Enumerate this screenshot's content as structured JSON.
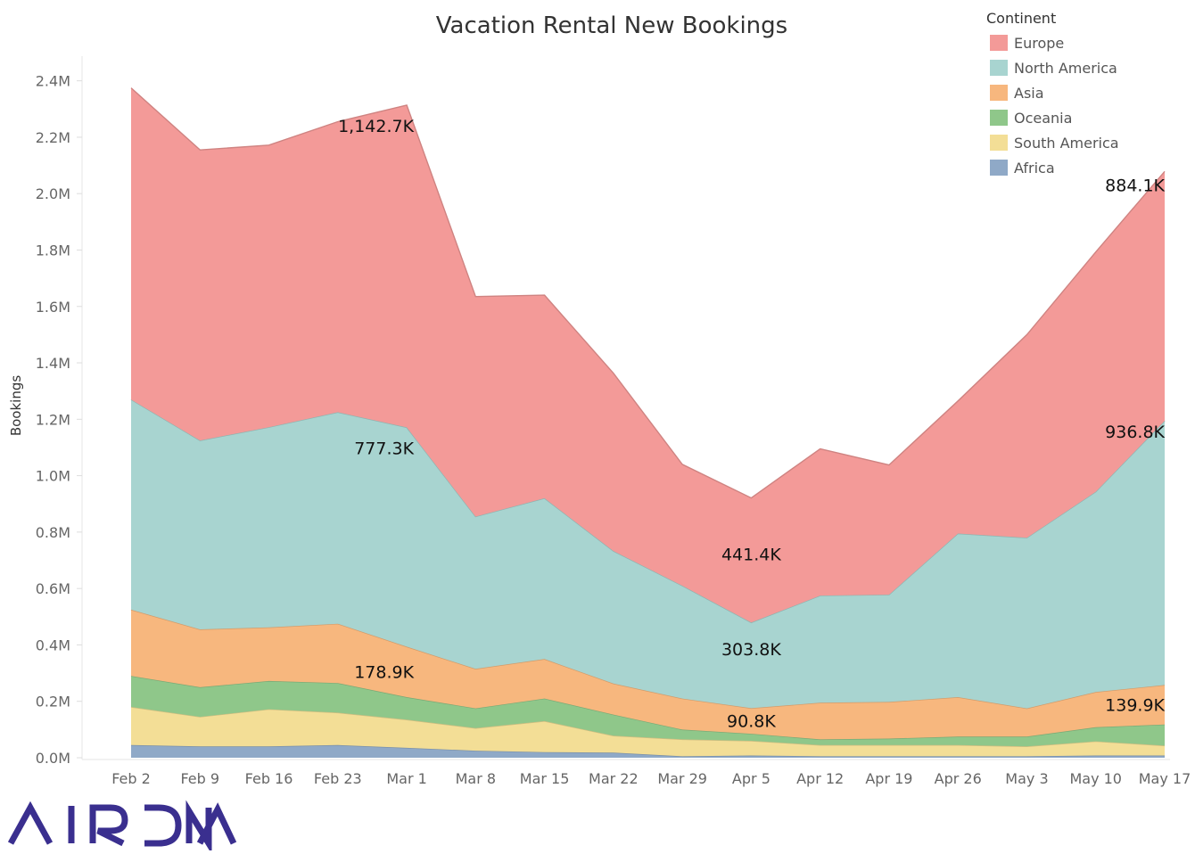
{
  "chart_data": {
    "type": "area",
    "stacked": true,
    "title": "Vacation Rental New Bookings",
    "ylabel": "Bookings",
    "xlabel": "",
    "ylim": [
      0,
      2.5
    ],
    "yticks": [
      "0.0M",
      "0.2M",
      "0.4M",
      "0.6M",
      "0.8M",
      "1.0M",
      "1.2M",
      "1.4M",
      "1.6M",
      "1.8M",
      "2.0M",
      "2.2M",
      "2.4M"
    ],
    "categories": [
      "Feb 2",
      "Feb 9",
      "Feb 16",
      "Feb 23",
      "Mar 1",
      "Mar 8",
      "Mar 15",
      "Mar 22",
      "Mar 29",
      "Apr 5",
      "Apr 12",
      "Apr 19",
      "Apr 26",
      "May 3",
      "May 10",
      "May 17"
    ],
    "value_unit": "M bookings",
    "grid": false,
    "legend": {
      "title": "Continent",
      "position": "top-right"
    },
    "series": [
      {
        "name": "Africa",
        "color": "#8fa9c7",
        "values": [
          0.045,
          0.04,
          0.04,
          0.045,
          0.035,
          0.025,
          0.02,
          0.018,
          0.005,
          0.008,
          0.005,
          0.005,
          0.005,
          0.005,
          0.008,
          0.008
        ]
      },
      {
        "name": "South America",
        "color": "#f3de96",
        "values": [
          0.135,
          0.105,
          0.132,
          0.115,
          0.1,
          0.08,
          0.11,
          0.06,
          0.06,
          0.052,
          0.04,
          0.04,
          0.04,
          0.035,
          0.05,
          0.035
        ]
      },
      {
        "name": "Oceania",
        "color": "#8fc78a",
        "values": [
          0.11,
          0.105,
          0.1,
          0.105,
          0.08,
          0.07,
          0.08,
          0.075,
          0.035,
          0.025,
          0.02,
          0.023,
          0.03,
          0.035,
          0.05,
          0.075
        ]
      },
      {
        "name": "Asia",
        "color": "#f7b77e",
        "values": [
          0.235,
          0.205,
          0.19,
          0.21,
          0.1789,
          0.14,
          0.14,
          0.11,
          0.11,
          0.0908,
          0.13,
          0.13,
          0.14,
          0.1,
          0.125,
          0.1399
        ]
      },
      {
        "name": "North America",
        "color": "#a8d4d0",
        "values": [
          0.745,
          0.67,
          0.71,
          0.75,
          0.7773,
          0.54,
          0.57,
          0.47,
          0.4,
          0.3038,
          0.38,
          0.38,
          0.58,
          0.605,
          0.71,
          0.9368
        ]
      },
      {
        "name": "Europe",
        "color": "#f39a98",
        "values": [
          1.105,
          1.03,
          1.0,
          1.03,
          1.1427,
          0.78,
          0.72,
          0.63,
          0.43,
          0.4414,
          0.52,
          0.46,
          0.47,
          0.72,
          0.85,
          0.8841
        ]
      }
    ],
    "annotations": [
      {
        "series": "Europe",
        "category": "Mar 1",
        "text": "1,142.7K"
      },
      {
        "series": "North America",
        "category": "Mar 1",
        "text": "777.3K"
      },
      {
        "series": "Asia",
        "category": "Mar 1",
        "text": "178.9K"
      },
      {
        "series": "Europe",
        "category": "Apr 5",
        "text": "441.4K"
      },
      {
        "series": "North America",
        "category": "Apr 5",
        "text": "303.8K"
      },
      {
        "series": "Asia",
        "category": "Apr 5",
        "text": "90.8K"
      },
      {
        "series": "Europe",
        "category": "May 17",
        "text": "884.1K"
      },
      {
        "series": "North America",
        "category": "May 17",
        "text": "936.8K"
      },
      {
        "series": "Asia",
        "category": "May 17",
        "text": "139.9K"
      }
    ]
  },
  "branding": {
    "logo_text": "AIRDNA",
    "logo_color": "#3a2f8f"
  }
}
